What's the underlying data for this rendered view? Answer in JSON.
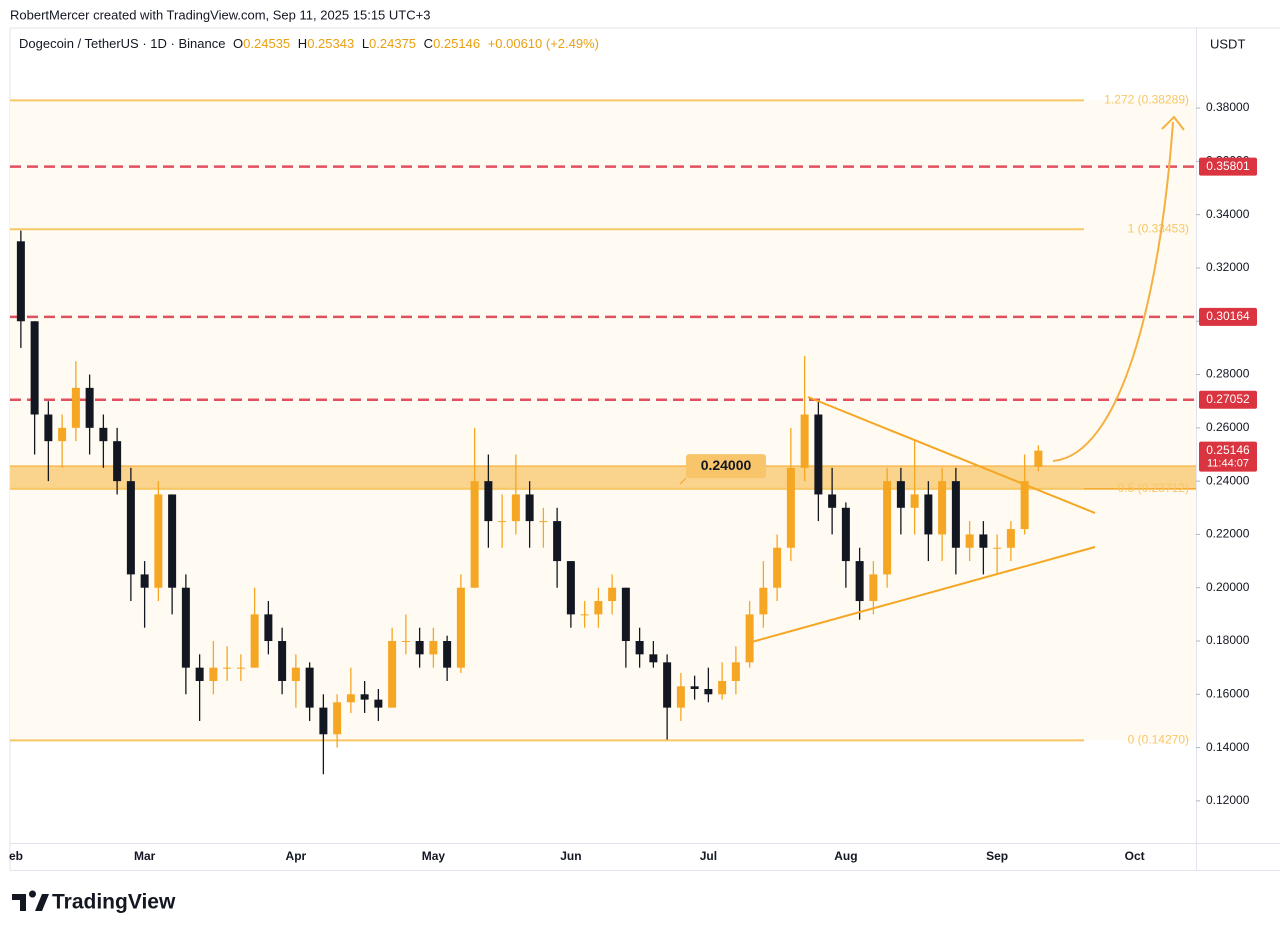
{
  "chart_data": {
    "type": "candlestick",
    "credit": "RobertMercer created with TradingView.com, Sep 11, 2025 15:15 UTC+3",
    "symbol": "Dogecoin / TetherUS · 1D · Binance",
    "ohlc_labels": [
      "O",
      "H",
      "L",
      "C"
    ],
    "change": "+0.00610 (+2.49%)",
    "currency": "USDT",
    "timer": "11:44:07",
    "brand": "TradingView",
    "up_color": "#f5a623",
    "down_color": "#131722",
    "categories": [
      "eb",
      null,
      null,
      null,
      null,
      null,
      null,
      null,
      null,
      "Mar",
      null,
      null,
      null,
      null,
      null,
      null,
      null,
      null,
      null,
      null,
      "Apr",
      null,
      null,
      null,
      null,
      null,
      null,
      null,
      null,
      null,
      "May",
      null,
      null,
      null,
      null,
      null,
      null,
      null,
      null,
      null,
      "Jun",
      null,
      null,
      null,
      null,
      null,
      null,
      null,
      null,
      null,
      "Jul",
      null,
      null,
      null,
      null,
      null,
      null,
      null,
      null,
      null,
      "Aug",
      null,
      null,
      null,
      null,
      null,
      null,
      null,
      null,
      null,
      null,
      "Sep",
      null,
      null,
      null,
      null,
      null,
      null,
      null,
      null,
      null,
      "Oct",
      null,
      null,
      null,
      null
    ],
    "open": [
      0.33,
      0.3,
      0.265,
      0.255,
      0.26,
      0.275,
      0.26,
      0.255,
      0.24,
      0.205,
      0.2,
      0.235,
      0.2,
      0.17,
      0.165,
      0.17,
      0.17,
      0.17,
      0.19,
      0.18,
      0.165,
      0.17,
      0.155,
      0.145,
      0.157,
      0.16,
      0.158,
      0.155,
      0.18,
      0.18,
      0.175,
      0.18,
      0.17,
      0.2,
      0.24,
      0.225,
      0.225,
      0.235,
      0.225,
      0.225,
      0.21,
      0.19,
      0.19,
      0.195,
      0.2,
      0.18,
      0.175,
      0.172,
      0.155,
      0.163,
      0.162,
      0.16,
      0.165,
      0.172,
      0.19,
      0.2,
      0.215,
      0.245,
      0.265,
      0.235,
      0.23,
      0.21,
      0.195,
      0.205,
      0.24,
      0.23,
      0.235,
      0.22,
      0.24,
      0.215,
      0.22,
      0.215,
      0.215,
      0.222,
      0.24535,
      null,
      null,
      null,
      null,
      null,
      null,
      null,
      null,
      null,
      null,
      null
    ],
    "high": [
      0.334,
      0.3,
      0.27,
      0.265,
      0.285,
      0.28,
      0.265,
      0.26,
      0.245,
      0.21,
      0.24,
      0.235,
      0.205,
      0.175,
      0.18,
      0.178,
      0.175,
      0.2,
      0.195,
      0.185,
      0.175,
      0.172,
      0.16,
      0.16,
      0.17,
      0.165,
      0.162,
      0.185,
      0.19,
      0.185,
      0.185,
      0.182,
      0.205,
      0.26,
      0.25,
      0.235,
      0.25,
      0.24,
      0.23,
      0.23,
      0.21,
      0.195,
      0.2,
      0.205,
      0.2,
      0.185,
      0.18,
      0.175,
      0.168,
      0.167,
      0.17,
      0.172,
      0.178,
      0.195,
      0.21,
      0.22,
      0.26,
      0.287,
      0.27,
      0.245,
      0.232,
      0.215,
      0.21,
      0.245,
      0.245,
      0.255,
      0.24,
      0.245,
      0.245,
      0.225,
      0.225,
      0.22,
      0.225,
      0.25,
      0.25343,
      null,
      null,
      null,
      null,
      null,
      null,
      null,
      null,
      null,
      null,
      null
    ],
    "low": [
      0.29,
      0.25,
      0.24,
      0.245,
      0.255,
      0.25,
      0.245,
      0.235,
      0.195,
      0.185,
      0.195,
      0.19,
      0.16,
      0.15,
      0.16,
      0.165,
      0.165,
      0.17,
      0.175,
      0.16,
      0.155,
      0.15,
      0.13,
      0.14,
      0.153,
      0.153,
      0.15,
      0.155,
      0.175,
      0.17,
      0.17,
      0.165,
      0.168,
      0.2,
      0.215,
      0.215,
      0.22,
      0.215,
      0.215,
      0.2,
      0.185,
      0.185,
      0.185,
      0.19,
      0.17,
      0.17,
      0.17,
      0.143,
      0.15,
      0.158,
      0.157,
      0.158,
      0.16,
      0.17,
      0.185,
      0.195,
      0.21,
      0.24,
      0.225,
      0.22,
      0.2,
      0.188,
      0.19,
      0.2,
      0.22,
      0.22,
      0.21,
      0.21,
      0.205,
      0.21,
      0.205,
      0.205,
      0.21,
      0.22,
      0.24375,
      null,
      null,
      null,
      null,
      null,
      null,
      null,
      null,
      null,
      null,
      null
    ],
    "close": [
      0.3,
      0.265,
      0.255,
      0.26,
      0.275,
      0.26,
      0.255,
      0.24,
      0.205,
      0.2,
      0.235,
      0.2,
      0.17,
      0.165,
      0.17,
      0.17,
      0.17,
      0.19,
      0.18,
      0.165,
      0.17,
      0.155,
      0.145,
      0.157,
      0.16,
      0.158,
      0.155,
      0.18,
      0.18,
      0.175,
      0.18,
      0.17,
      0.2,
      0.24,
      0.225,
      0.225,
      0.235,
      0.225,
      0.225,
      0.21,
      0.19,
      0.19,
      0.195,
      0.2,
      0.18,
      0.175,
      0.172,
      0.155,
      0.163,
      0.162,
      0.16,
      0.165,
      0.172,
      0.19,
      0.2,
      0.215,
      0.245,
      0.265,
      0.235,
      0.23,
      0.21,
      0.195,
      0.205,
      0.24,
      0.23,
      0.235,
      0.22,
      0.24,
      0.215,
      0.22,
      0.215,
      0.215,
      0.222,
      0.24,
      0.25146,
      null,
      null,
      null,
      null,
      null,
      null,
      null,
      null,
      null,
      null,
      null
    ],
    "ylim": [
      0.1042,
      0.4093
    ],
    "yticks": [
      {
        "value": 0.12,
        "label": "0.12000"
      },
      {
        "value": 0.14,
        "label": "0.14000"
      },
      {
        "value": 0.16,
        "label": "0.16000"
      },
      {
        "value": 0.18,
        "label": "0.18000"
      },
      {
        "value": 0.2,
        "label": "0.20000"
      },
      {
        "value": 0.22,
        "label": "0.22000"
      },
      {
        "value": 0.24,
        "label": "0.24000"
      },
      {
        "value": 0.26,
        "label": "0.26000"
      },
      {
        "value": 0.28,
        "label": "0.28000"
      },
      {
        "value": 0.3,
        "label": "0.30000"
      },
      {
        "value": 0.32,
        "label": "0.32000"
      },
      {
        "value": 0.34,
        "label": "0.34000"
      },
      {
        "value": 0.36,
        "label": "0.36000"
      },
      {
        "value": 0.38,
        "label": "0.38000"
      }
    ],
    "fib_levels": [
      {
        "value": 0.38289,
        "label": "1.272 (0.38289)"
      },
      {
        "value": 0.33453,
        "label": "1 (0.33453)"
      },
      {
        "value": 0.23712,
        "label": "0.5 (0.23712)"
      },
      {
        "value": 0.1427,
        "label": "0 (0.14270)"
      }
    ],
    "levels": [
      0.35801,
      0.30164,
      0.27052
    ],
    "level_color": "#e0505e",
    "fib_color": "#f7c766",
    "zone": [
      0.2371,
      0.2457
    ],
    "zone_label": {
      "value": 0.24,
      "label": "0.24000"
    }
  }
}
